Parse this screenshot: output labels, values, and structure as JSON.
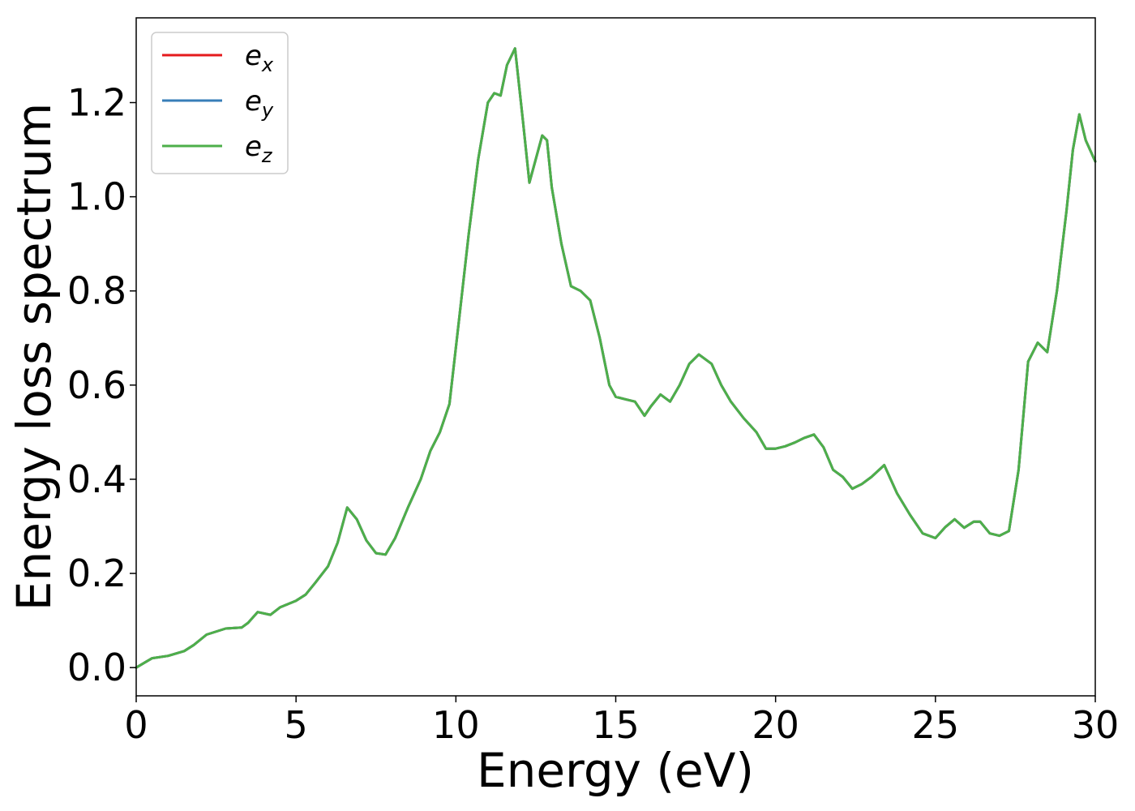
{
  "chart_data": {
    "type": "line",
    "xlabel": "Energy (eV)",
    "ylabel": "Energy loss spectrum",
    "xlim": [
      0,
      30
    ],
    "ylim": [
      -0.06,
      1.38
    ],
    "xticks": [
      0,
      5,
      10,
      15,
      20,
      25,
      30
    ],
    "yticks": [
      0.0,
      0.2,
      0.4,
      0.6,
      0.8,
      1.0,
      1.2
    ],
    "xtick_labels": [
      "0",
      "5",
      "10",
      "15",
      "20",
      "25",
      "30"
    ],
    "ytick_labels": [
      "0.0",
      "0.2",
      "0.4",
      "0.6",
      "0.8",
      "1.0",
      "1.2"
    ],
    "grid": false,
    "legend_position": "top-left",
    "x": [
      0,
      0.3,
      0.5,
      1.0,
      1.5,
      1.8,
      2.2,
      2.8,
      3.3,
      3.5,
      3.8,
      4.2,
      4.5,
      5.0,
      5.3,
      5.6,
      6.0,
      6.3,
      6.6,
      6.9,
      7.2,
      7.5,
      7.8,
      8.1,
      8.5,
      8.9,
      9.2,
      9.5,
      9.8,
      10.1,
      10.4,
      10.7,
      11.0,
      11.2,
      11.4,
      11.6,
      11.85,
      12.1,
      12.3,
      12.5,
      12.7,
      12.85,
      13.0,
      13.3,
      13.6,
      13.9,
      14.2,
      14.5,
      14.8,
      15.0,
      15.3,
      15.6,
      15.9,
      16.1,
      16.4,
      16.7,
      17.0,
      17.3,
      17.6,
      18.0,
      18.3,
      18.6,
      19.0,
      19.4,
      19.7,
      20.0,
      20.3,
      20.6,
      20.9,
      21.2,
      21.5,
      21.8,
      22.1,
      22.4,
      22.7,
      23.0,
      23.4,
      23.8,
      24.2,
      24.6,
      25.0,
      25.3,
      25.6,
      25.9,
      26.2,
      26.4,
      26.7,
      27.0,
      27.3,
      27.6,
      27.9,
      28.2,
      28.5,
      28.8,
      29.1,
      29.3,
      29.5,
      29.7,
      30.0
    ],
    "series": [
      {
        "name": "e_x",
        "color": "#e41a1c",
        "values": [
          0.0,
          0.012,
          0.02,
          0.025,
          0.035,
          0.048,
          0.07,
          0.083,
          0.085,
          0.095,
          0.118,
          0.112,
          0.128,
          0.142,
          0.155,
          0.18,
          0.215,
          0.265,
          0.34,
          0.315,
          0.27,
          0.243,
          0.24,
          0.275,
          0.34,
          0.4,
          0.46,
          0.5,
          0.56,
          0.74,
          0.92,
          1.08,
          1.2,
          1.22,
          1.215,
          1.28,
          1.315,
          1.16,
          1.03,
          1.08,
          1.13,
          1.12,
          1.02,
          0.9,
          0.81,
          0.8,
          0.78,
          0.7,
          0.6,
          0.575,
          0.57,
          0.565,
          0.535,
          0.555,
          0.58,
          0.565,
          0.6,
          0.645,
          0.665,
          0.645,
          0.6,
          0.565,
          0.53,
          0.5,
          0.465,
          0.465,
          0.47,
          0.478,
          0.488,
          0.495,
          0.468,
          0.42,
          0.405,
          0.38,
          0.39,
          0.405,
          0.43,
          0.37,
          0.325,
          0.285,
          0.275,
          0.298,
          0.315,
          0.297,
          0.31,
          0.31,
          0.285,
          0.28,
          0.29,
          0.42,
          0.65,
          0.69,
          0.67,
          0.8,
          0.97,
          1.1,
          1.175,
          1.12,
          1.075
        ]
      },
      {
        "name": "e_y",
        "color": "#377eb8",
        "values": [
          0.0,
          0.012,
          0.02,
          0.025,
          0.035,
          0.048,
          0.07,
          0.083,
          0.085,
          0.095,
          0.118,
          0.112,
          0.128,
          0.142,
          0.155,
          0.18,
          0.215,
          0.265,
          0.34,
          0.315,
          0.27,
          0.243,
          0.24,
          0.275,
          0.34,
          0.4,
          0.46,
          0.5,
          0.56,
          0.74,
          0.92,
          1.08,
          1.2,
          1.22,
          1.215,
          1.28,
          1.315,
          1.16,
          1.03,
          1.08,
          1.13,
          1.12,
          1.02,
          0.9,
          0.81,
          0.8,
          0.78,
          0.7,
          0.6,
          0.575,
          0.57,
          0.565,
          0.535,
          0.555,
          0.58,
          0.565,
          0.6,
          0.645,
          0.665,
          0.645,
          0.6,
          0.565,
          0.53,
          0.5,
          0.465,
          0.465,
          0.47,
          0.478,
          0.488,
          0.495,
          0.468,
          0.42,
          0.405,
          0.38,
          0.39,
          0.405,
          0.43,
          0.37,
          0.325,
          0.285,
          0.275,
          0.298,
          0.315,
          0.297,
          0.31,
          0.31,
          0.285,
          0.28,
          0.29,
          0.42,
          0.65,
          0.69,
          0.67,
          0.8,
          0.97,
          1.1,
          1.175,
          1.12,
          1.075
        ]
      },
      {
        "name": "e_z",
        "color": "#4daf4a",
        "values": [
          0.0,
          0.012,
          0.02,
          0.025,
          0.035,
          0.048,
          0.07,
          0.083,
          0.085,
          0.095,
          0.118,
          0.112,
          0.128,
          0.142,
          0.155,
          0.18,
          0.215,
          0.265,
          0.34,
          0.315,
          0.27,
          0.243,
          0.24,
          0.275,
          0.34,
          0.4,
          0.46,
          0.5,
          0.56,
          0.74,
          0.92,
          1.08,
          1.2,
          1.22,
          1.215,
          1.28,
          1.315,
          1.16,
          1.03,
          1.08,
          1.13,
          1.12,
          1.02,
          0.9,
          0.81,
          0.8,
          0.78,
          0.7,
          0.6,
          0.575,
          0.57,
          0.565,
          0.535,
          0.555,
          0.58,
          0.565,
          0.6,
          0.645,
          0.665,
          0.645,
          0.6,
          0.565,
          0.53,
          0.5,
          0.465,
          0.465,
          0.47,
          0.478,
          0.488,
          0.495,
          0.468,
          0.42,
          0.405,
          0.38,
          0.39,
          0.405,
          0.43,
          0.37,
          0.325,
          0.285,
          0.275,
          0.298,
          0.315,
          0.297,
          0.31,
          0.31,
          0.285,
          0.28,
          0.29,
          0.42,
          0.65,
          0.69,
          0.67,
          0.8,
          0.97,
          1.1,
          1.175,
          1.12,
          1.075
        ]
      }
    ],
    "legend": [
      {
        "base": "e",
        "sub": "x",
        "color": "#e41a1c"
      },
      {
        "base": "e",
        "sub": "y",
        "color": "#377eb8"
      },
      {
        "base": "e",
        "sub": "z",
        "color": "#4daf4a"
      }
    ]
  }
}
